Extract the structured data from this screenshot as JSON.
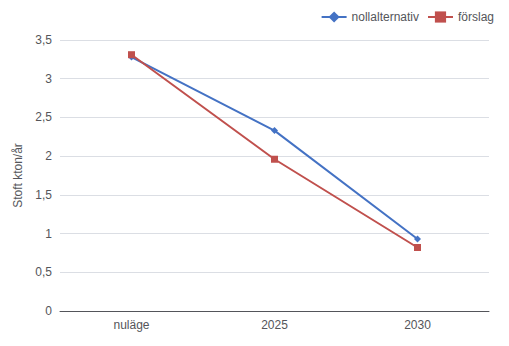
{
  "chart_data": {
    "type": "line",
    "categories": [
      "nuläge",
      "2025",
      "2030"
    ],
    "series": [
      {
        "name": "nollalternativ",
        "color": "#4472C4",
        "marker": "diamond",
        "values": [
          3.28,
          2.33,
          0.93
        ]
      },
      {
        "name": "förslag",
        "color": "#C0504D",
        "marker": "square",
        "values": [
          3.31,
          1.96,
          0.82
        ]
      }
    ],
    "ylabel": "Stoft kton/år",
    "ylim": [
      0,
      3.5
    ],
    "yticks": [
      0,
      {
        "value": 0.5,
        "label": "0,5"
      },
      1,
      {
        "value": 1.5,
        "label": "1,5"
      },
      2,
      {
        "value": 2.5,
        "label": "2,5"
      },
      3,
      {
        "value": 3.5,
        "label": "3,5"
      }
    ],
    "grid": true,
    "legend": "upper right"
  }
}
